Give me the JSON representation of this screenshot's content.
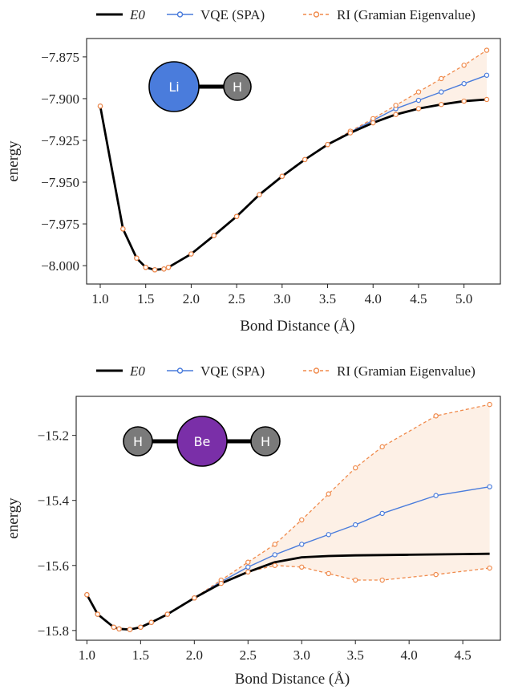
{
  "chart_data": [
    {
      "type": "line",
      "title": "",
      "xlabel": "Bond Distance (Å)",
      "ylabel": "energy",
      "xlim": [
        0.85,
        5.4
      ],
      "ylim": [
        -8.011,
        -7.864
      ],
      "xticks": [
        "1.0",
        "1.5",
        "2.0",
        "2.5",
        "3.0",
        "3.5",
        "4.0",
        "4.5",
        "5.0"
      ],
      "yticks": [
        "−7.875",
        "−7.900",
        "−7.925",
        "−7.950",
        "−7.975",
        "−8.000"
      ],
      "ytick_values": [
        -7.875,
        -7.9,
        -7.925,
        -7.95,
        -7.975,
        -8.0
      ],
      "xtick_values": [
        1.0,
        1.5,
        2.0,
        2.5,
        3.0,
        3.5,
        4.0,
        4.5,
        5.0
      ],
      "grid": false,
      "legend": {
        "position": "top-outside",
        "entries": [
          "E0",
          "VQE (SPA)",
          "RI (Gramian Eigenvalue)"
        ]
      },
      "molecule": {
        "atoms": [
          "Li",
          "H"
        ],
        "colors": [
          "#4a7cdc",
          "#7a7a7a"
        ]
      },
      "series": [
        {
          "name": "E0",
          "color": "#000000",
          "style": "solid",
          "x": [
            1.0,
            1.25,
            1.4,
            1.5,
            1.6,
            1.7,
            1.75,
            2.0,
            2.25,
            2.5,
            2.75,
            3.0,
            3.25,
            3.5,
            3.75,
            4.0,
            4.25,
            4.5,
            4.75,
            5.0,
            5.25
          ],
          "y": [
            -7.9045,
            -7.978,
            -7.9955,
            -8.001,
            -8.0025,
            -8.002,
            -8.001,
            -7.993,
            -7.982,
            -7.9705,
            -7.9575,
            -7.9465,
            -7.9365,
            -7.9275,
            -7.9205,
            -7.9145,
            -7.9095,
            -7.906,
            -7.9035,
            -7.9015,
            -7.9005
          ]
        },
        {
          "name": "VQE (SPA)",
          "color": "#4a7cdc",
          "style": "marker",
          "x": [
            1.0,
            1.25,
            1.4,
            1.5,
            1.6,
            1.7,
            1.75,
            2.0,
            2.25,
            2.5,
            2.75,
            3.0,
            3.25,
            3.5,
            3.75,
            4.0,
            4.25,
            4.5,
            4.75,
            5.0,
            5.25
          ],
          "y": [
            -7.9045,
            -7.978,
            -7.9955,
            -8.001,
            -8.0025,
            -8.002,
            -8.001,
            -7.993,
            -7.982,
            -7.9705,
            -7.9575,
            -7.9465,
            -7.9365,
            -7.9275,
            -7.92,
            -7.913,
            -7.906,
            -7.901,
            -7.896,
            -7.891,
            -7.886
          ]
        },
        {
          "name": "RI upper",
          "color": "#f08a4b",
          "style": "dashed",
          "x": [
            1.0,
            1.25,
            1.4,
            1.5,
            1.6,
            1.7,
            1.75,
            2.0,
            2.25,
            2.5,
            2.75,
            3.0,
            3.25,
            3.5,
            3.75,
            4.0,
            4.25,
            4.5,
            4.75,
            5.0,
            5.25
          ],
          "y": [
            -7.9045,
            -7.978,
            -7.9955,
            -8.001,
            -8.0025,
            -8.002,
            -8.001,
            -7.993,
            -7.982,
            -7.9705,
            -7.9575,
            -7.9465,
            -7.9365,
            -7.9275,
            -7.9195,
            -7.912,
            -7.904,
            -7.896,
            -7.888,
            -7.88,
            -7.871
          ]
        },
        {
          "name": "RI lower",
          "color": "#f08a4b",
          "style": "dashed",
          "x": [
            1.0,
            1.25,
            1.4,
            1.5,
            1.6,
            1.7,
            1.75,
            2.0,
            2.25,
            2.5,
            2.75,
            3.0,
            3.25,
            3.5,
            3.75,
            4.0,
            4.25,
            4.5,
            4.75,
            5.0,
            5.25
          ],
          "y": [
            -7.9045,
            -7.978,
            -7.9955,
            -8.001,
            -8.0025,
            -8.002,
            -8.001,
            -7.993,
            -7.982,
            -7.9705,
            -7.9575,
            -7.9465,
            -7.9365,
            -7.9275,
            -7.9205,
            -7.9145,
            -7.9095,
            -7.906,
            -7.9035,
            -7.9015,
            -7.9005
          ]
        }
      ]
    },
    {
      "type": "line",
      "title": "",
      "xlabel": "Bond Distance (Å)",
      "ylabel": "energy",
      "xlim": [
        0.9,
        4.85
      ],
      "ylim": [
        -15.83,
        -15.08
      ],
      "xticks": [
        "1.0",
        "1.5",
        "2.0",
        "2.5",
        "3.0",
        "3.5",
        "4.0",
        "4.5"
      ],
      "yticks": [
        "−15.2",
        "−15.4",
        "−15.6",
        "−15.8"
      ],
      "ytick_values": [
        -15.2,
        -15.4,
        -15.6,
        -15.8
      ],
      "xtick_values": [
        1.0,
        1.5,
        2.0,
        2.5,
        3.0,
        3.5,
        4.0,
        4.5
      ],
      "grid": false,
      "legend": {
        "position": "top-outside",
        "entries": [
          "E0",
          "VQE (SPA)",
          "RI (Gramian Eigenvalue)"
        ]
      },
      "molecule": {
        "atoms": [
          "H",
          "Be",
          "H"
        ],
        "colors": [
          "#7a7a7a",
          "#7a2fa8",
          "#7a7a7a"
        ]
      },
      "series": [
        {
          "name": "E0",
          "color": "#000000",
          "style": "solid",
          "x": [
            1.0,
            1.1,
            1.25,
            1.3,
            1.4,
            1.5,
            1.6,
            1.75,
            2.0,
            2.25,
            2.5,
            2.75,
            3.0,
            3.25,
            3.5,
            3.75,
            4.0,
            4.25,
            4.5,
            4.75
          ],
          "y": [
            -15.69,
            -15.75,
            -15.79,
            -15.795,
            -15.797,
            -15.79,
            -15.775,
            -15.75,
            -15.7,
            -15.655,
            -15.62,
            -15.59,
            -15.575,
            -15.571,
            -15.569,
            -15.568,
            -15.567,
            -15.566,
            -15.565,
            -15.564
          ]
        },
        {
          "name": "VQE (SPA)",
          "color": "#4a7cdc",
          "style": "marker",
          "x": [
            1.0,
            1.1,
            1.25,
            1.3,
            1.4,
            1.5,
            1.6,
            1.75,
            2.0,
            2.25,
            2.5,
            2.75,
            3.0,
            3.25,
            3.5,
            3.75,
            4.25,
            4.75
          ],
          "y": [
            -15.69,
            -15.75,
            -15.79,
            -15.795,
            -15.797,
            -15.79,
            -15.775,
            -15.75,
            -15.7,
            -15.65,
            -15.605,
            -15.567,
            -15.535,
            -15.505,
            -15.475,
            -15.44,
            -15.385,
            -15.358
          ]
        },
        {
          "name": "RI upper",
          "color": "#f08a4b",
          "style": "dashed",
          "x": [
            1.0,
            1.1,
            1.25,
            1.3,
            1.4,
            1.5,
            1.6,
            1.75,
            2.0,
            2.25,
            2.5,
            2.75,
            3.0,
            3.25,
            3.5,
            3.75,
            4.25,
            4.75
          ],
          "y": [
            -15.69,
            -15.75,
            -15.79,
            -15.795,
            -15.797,
            -15.79,
            -15.775,
            -15.75,
            -15.7,
            -15.645,
            -15.59,
            -15.535,
            -15.46,
            -15.38,
            -15.3,
            -15.235,
            -15.14,
            -15.105
          ]
        },
        {
          "name": "RI lower",
          "color": "#f08a4b",
          "style": "dashed",
          "x": [
            1.0,
            1.1,
            1.25,
            1.3,
            1.4,
            1.5,
            1.6,
            1.75,
            2.0,
            2.25,
            2.5,
            2.75,
            3.0,
            3.25,
            3.5,
            3.75,
            4.25,
            4.75
          ],
          "y": [
            -15.69,
            -15.75,
            -15.79,
            -15.795,
            -15.797,
            -15.79,
            -15.775,
            -15.75,
            -15.7,
            -15.655,
            -15.62,
            -15.6,
            -15.605,
            -15.625,
            -15.645,
            -15.645,
            -15.628,
            -15.608
          ]
        }
      ]
    }
  ]
}
